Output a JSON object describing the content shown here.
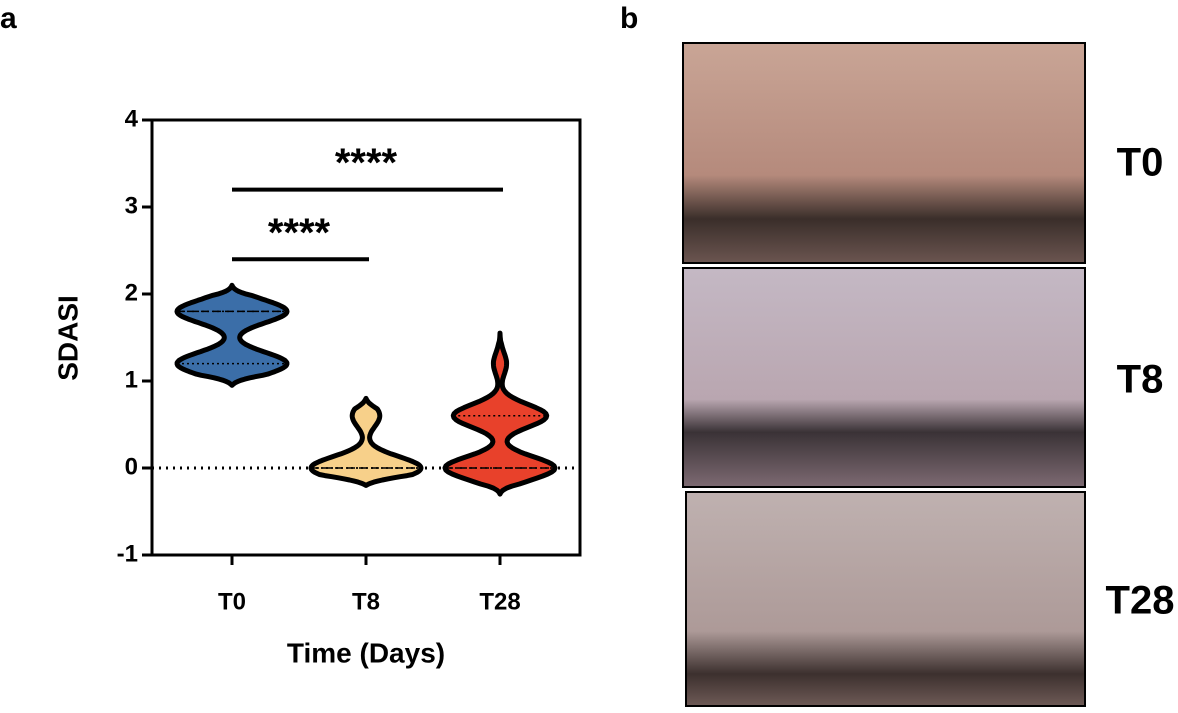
{
  "chart_data": {
    "type": "violin",
    "panel_label": "a",
    "ylabel": "SDASI",
    "xlabel": "Time (Days)",
    "categories": [
      "T0",
      "T8",
      "T28"
    ],
    "series": [
      {
        "name": "T0",
        "color": "#3b6ea8",
        "extent": [
          0.95,
          2.1
        ],
        "quartiles": [
          1.2,
          1.8,
          1.8
        ],
        "modes": [
          {
            "at": 1.2,
            "weight": 1.0
          },
          {
            "at": 1.8,
            "weight": 1.0
          }
        ]
      },
      {
        "name": "T8",
        "color": "#f7d08a",
        "extent": [
          -0.2,
          0.8
        ],
        "quartiles": [
          0,
          0,
          0
        ],
        "modes": [
          {
            "at": 0,
            "weight": 1.0
          },
          {
            "at": 0.6,
            "weight": 0.25
          }
        ]
      },
      {
        "name": "T28",
        "color": "#e8412b",
        "extent": [
          -0.3,
          1.55
        ],
        "quartiles": [
          0,
          0,
          0.6
        ],
        "modes": [
          {
            "at": 0,
            "weight": 1.0
          },
          {
            "at": 0.6,
            "weight": 0.85
          },
          {
            "at": 1.2,
            "weight": 0.12
          }
        ]
      }
    ],
    "ylim": [
      -1,
      4
    ],
    "yticks": [
      -1,
      0,
      1,
      2,
      3,
      4
    ],
    "hline": 0,
    "annotations": [
      {
        "text": "****",
        "from": 0,
        "to": 1,
        "y": 2.4
      },
      {
        "text": "****",
        "from": 0,
        "to": 2,
        "y": 3.2
      }
    ]
  },
  "images": {
    "panel_label": "b",
    "labels": [
      "T0",
      "T8",
      "T28"
    ]
  }
}
